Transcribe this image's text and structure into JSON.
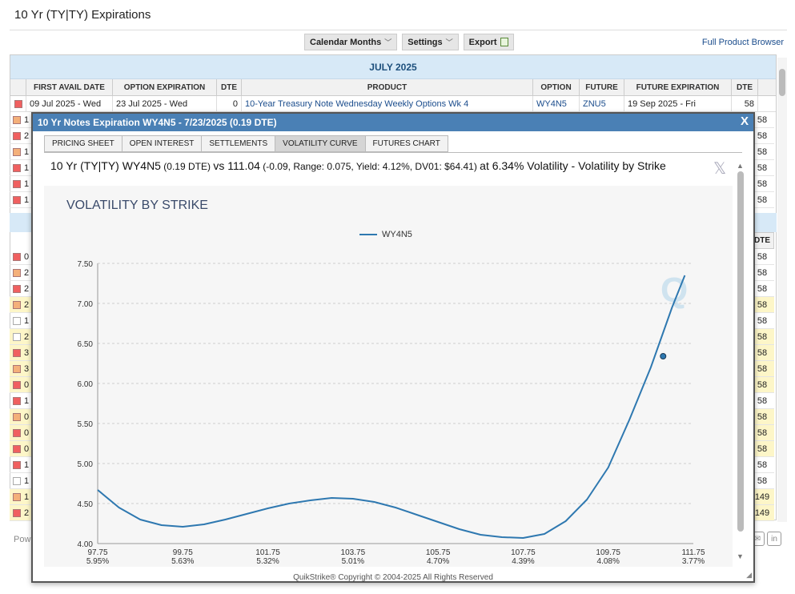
{
  "page": {
    "title": "10 Yr (TY|TY) Expirations"
  },
  "toolbar": {
    "calendar": "Calendar Months",
    "settings": "Settings",
    "export": "Export",
    "full_product_browser": "Full Product Browser"
  },
  "table": {
    "month": "JULY 2025",
    "headers": [
      "FIRST AVAIL DATE",
      "OPTION EXPIRATION",
      "DTE",
      "PRODUCT",
      "OPTION",
      "FUTURE",
      "FUTURE EXPIRATION",
      "DTE"
    ],
    "first_row": {
      "first_avail": "09 Jul 2025 - Wed",
      "option_exp": "23 Jul 2025 - Wed",
      "dte": "0",
      "product": "10-Year Treasury Note Wednesday Weekly Options Wk 4",
      "option": "WY4N5",
      "future": "ZNU5",
      "future_exp": "19 Sep 2025 - Fri",
      "future_dte": "58"
    },
    "left_fragments": [
      "1",
      "2",
      "1",
      "1",
      "1",
      "1",
      "0",
      "2",
      "2",
      "2",
      "1",
      "2",
      "3",
      "3",
      "0",
      "1",
      "0",
      "0",
      "0",
      "1",
      "1",
      "1",
      "2"
    ],
    "right_dte_header": "DTE",
    "right_dte_top": [
      "58",
      "58",
      "58",
      "58",
      "58",
      "58"
    ],
    "right_dte_bottom": [
      "58",
      "58",
      "58",
      "58",
      "58",
      "58",
      "58",
      "58",
      "58",
      "58",
      "58",
      "58",
      "58",
      "58",
      "58",
      "149",
      "149"
    ],
    "footer_fragment": "Pow"
  },
  "modal": {
    "title": "10 Yr Notes Expiration WY4N5 - 7/23/2025 (0.19 DTE)",
    "close": "X",
    "tabs": [
      "PRICING SHEET",
      "OPEN INTEREST",
      "SETTLEMENTS",
      "VOLATILITY CURVE",
      "FUTURES CHART"
    ],
    "active_tab": "VOLATILITY CURVE",
    "summary": {
      "a": "10 Yr (TY|TY) WY4N5",
      "b": " (0.19 DTE) ",
      "c": "vs 111.04",
      "d": " (-0.09,  Range: 0.075, Yield: 4.12%, DV01: $64.41) ",
      "e": "at 6.34% Volatility - Volatility by Strike"
    },
    "footer": "QuikStrike® Copyright © 2004-2025 All Rights Reserved"
  },
  "chart_data": {
    "type": "line",
    "title": "VOLATILITY BY STRIKE",
    "xlabel": "",
    "ylabel": "",
    "series": [
      {
        "name": "WY4N5",
        "color": "#2e78b0",
        "x": [
          97.75,
          98.25,
          98.75,
          99.25,
          99.75,
          100.25,
          100.75,
          101.25,
          101.75,
          102.25,
          102.75,
          103.25,
          103.75,
          104.25,
          104.75,
          105.25,
          105.75,
          106.25,
          106.75,
          107.25,
          107.75,
          108.25,
          108.75,
          109.25,
          109.75,
          110.25,
          110.75,
          111.25,
          111.55
        ],
        "values": [
          4.67,
          4.45,
          4.3,
          4.23,
          4.21,
          4.24,
          4.3,
          4.37,
          4.44,
          4.5,
          4.54,
          4.57,
          4.56,
          4.52,
          4.45,
          4.36,
          4.27,
          4.18,
          4.11,
          4.08,
          4.07,
          4.12,
          4.28,
          4.55,
          4.95,
          5.55,
          6.2,
          6.95,
          7.35
        ]
      }
    ],
    "current_point": {
      "x": 111.04,
      "y": 6.34
    },
    "xlim": [
      97.75,
      111.75
    ],
    "ylim": [
      4.0,
      7.5
    ],
    "yticks": [
      "7.50",
      "7.00",
      "6.50",
      "6.00",
      "5.50",
      "5.00",
      "4.50",
      "4.00"
    ],
    "xticks": [
      {
        "strike": "97.75",
        "vol": "5.95%"
      },
      {
        "strike": "99.75",
        "vol": "5.63%"
      },
      {
        "strike": "101.75",
        "vol": "5.32%"
      },
      {
        "strike": "103.75",
        "vol": "5.01%"
      },
      {
        "strike": "105.75",
        "vol": "4.70%"
      },
      {
        "strike": "107.75",
        "vol": "4.39%"
      },
      {
        "strike": "109.75",
        "vol": "4.08%"
      },
      {
        "strike": "111.75",
        "vol": "3.77%"
      }
    ],
    "grid": true,
    "legend": "top-center"
  }
}
